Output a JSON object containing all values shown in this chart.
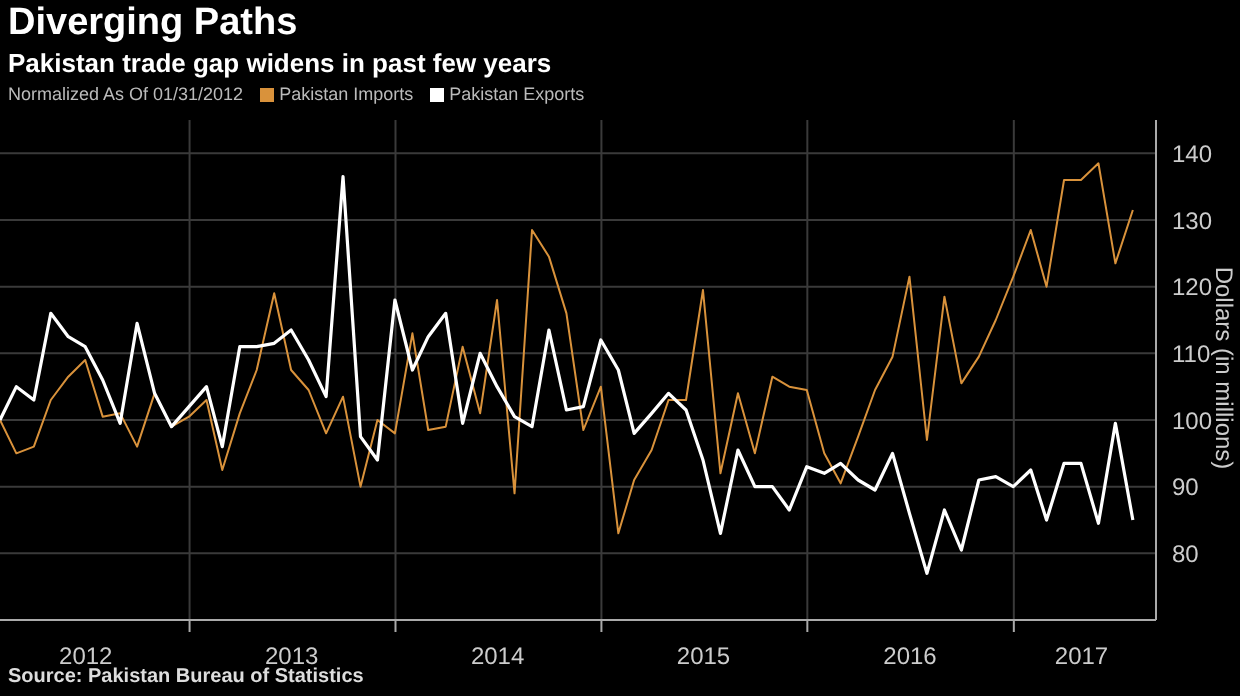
{
  "chart_data": {
    "type": "line",
    "title": "Diverging Paths",
    "subtitle": "Pakistan trade gap widens in past few years",
    "legend_title": "Normalized As Of 01/31/2012",
    "ylabel": "Dollars (in millions)",
    "annotations": [
      "Source: Pakistan Bureau of Statistics"
    ],
    "x": [
      "2012-01-31",
      "2012-02-29",
      "2012-03-31",
      "2012-04-30",
      "2012-05-31",
      "2012-06-30",
      "2012-07-31",
      "2012-08-31",
      "2012-09-30",
      "2012-10-31",
      "2012-11-30",
      "2012-12-31",
      "2013-01-31",
      "2013-02-28",
      "2013-03-31",
      "2013-04-30",
      "2013-05-31",
      "2013-06-30",
      "2013-07-31",
      "2013-08-31",
      "2013-09-30",
      "2013-10-31",
      "2013-11-30",
      "2013-12-31",
      "2014-01-31",
      "2014-02-28",
      "2014-03-31",
      "2014-04-30",
      "2014-05-31",
      "2014-06-30",
      "2014-07-31",
      "2014-08-31",
      "2014-09-30",
      "2014-10-31",
      "2014-11-30",
      "2014-12-31",
      "2015-01-31",
      "2015-02-28",
      "2015-03-31",
      "2015-04-30",
      "2015-05-31",
      "2015-06-30",
      "2015-07-31",
      "2015-08-31",
      "2015-09-30",
      "2015-10-31",
      "2015-11-30",
      "2015-12-31",
      "2016-01-31",
      "2016-02-29",
      "2016-03-31",
      "2016-04-30",
      "2016-05-31",
      "2016-06-30",
      "2016-07-31",
      "2016-08-31",
      "2016-09-30",
      "2016-10-31",
      "2016-11-30",
      "2016-12-31",
      "2017-01-31",
      "2017-02-28",
      "2017-03-31",
      "2017-04-30",
      "2017-05-31",
      "2017-06-30",
      "2017-07-31"
    ],
    "series": [
      {
        "name": "Pakistan Imports",
        "color": "#d9923b",
        "values": [
          100,
          95,
          96,
          103,
          106.5,
          109,
          100.5,
          101,
          96,
          104,
          99,
          100.5,
          103,
          92.5,
          101,
          107.5,
          119,
          107.5,
          104.5,
          98,
          103.5,
          90,
          100,
          98,
          113,
          98.5,
          99,
          111,
          101,
          118,
          89,
          128.5,
          124.5,
          116,
          98.5,
          105,
          83,
          91,
          95.5,
          103,
          103,
          119.5,
          92,
          104,
          95,
          106.5,
          105,
          104.5,
          95,
          90.5,
          97.5,
          104.5,
          109.5,
          121.5,
          97,
          118.5,
          105.5,
          109.5,
          115,
          121.5,
          128.5,
          120,
          136,
          136,
          138.5,
          123.5,
          131.5
        ]
      },
      {
        "name": "Pakistan Exports",
        "color": "#ffffff",
        "values": [
          100,
          105,
          103,
          116,
          112.5,
          111,
          106,
          99.5,
          114.5,
          104,
          99,
          102,
          105,
          96,
          111,
          111,
          111.5,
          113.5,
          109,
          103.5,
          136.5,
          97.5,
          94,
          118,
          107.5,
          112.5,
          116,
          99.5,
          110,
          105,
          100.5,
          99,
          113.5,
          101.5,
          102,
          112,
          107.5,
          98,
          101,
          104,
          101.5,
          94,
          83,
          95.5,
          90,
          90,
          86.5,
          93,
          92,
          93.5,
          91,
          89.5,
          95,
          86,
          77,
          86.5,
          80.5,
          91,
          91.5,
          90,
          92.5,
          85,
          93.5,
          93.5,
          84.5,
          99.5,
          85
        ]
      }
    ],
    "xlim": [
      "2012-01-31",
      "2017-09-10"
    ],
    "xticks": [
      {
        "value": "2012-07-01",
        "label": "2012"
      },
      {
        "value": "2013-01-01",
        "label": null
      },
      {
        "value": "2013-07-01",
        "label": "2013"
      },
      {
        "value": "2014-01-01",
        "label": null
      },
      {
        "value": "2014-07-01",
        "label": "2014"
      },
      {
        "value": "2015-01-01",
        "label": null
      },
      {
        "value": "2015-07-01",
        "label": "2015"
      },
      {
        "value": "2016-01-01",
        "label": null
      },
      {
        "value": "2016-07-01",
        "label": "2016"
      },
      {
        "value": "2017-01-01",
        "label": null
      },
      {
        "value": "2017-05-01",
        "label": "2017"
      }
    ],
    "ylim": [
      70,
      145
    ],
    "yticks": [
      80,
      90,
      100,
      110,
      120,
      130,
      140
    ],
    "grid": true,
    "legend": "top left"
  }
}
